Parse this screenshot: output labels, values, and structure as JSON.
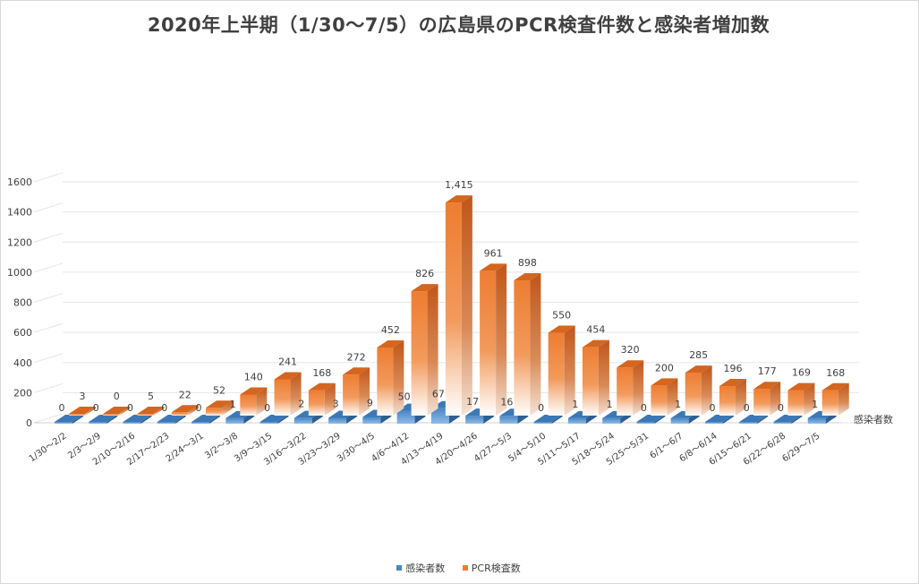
{
  "chart_data": {
    "type": "bar",
    "title": "2020年上半期（1/30〜7/5）の広島県のPCR検査件数と感染者増加数",
    "categories": [
      "1/30〜2/2",
      "2/3〜2/9",
      "2/10〜2/16",
      "2/17〜2/23",
      "2/24〜3/1",
      "3/2〜3/8",
      "3/9〜3/15",
      "3/16〜3/22",
      "3/23〜3/29",
      "3/30〜4/5",
      "4/6〜4/12",
      "4/13〜4/19",
      "4/20〜4/26",
      "4/27〜5/3",
      "5/4〜5/10",
      "5/11〜5/17",
      "5/18〜5/24",
      "5/25〜5/31",
      "6/1〜6/7",
      "6/8〜6/14",
      "6/15〜6/21",
      "6/22〜6/28",
      "6/29〜7/5"
    ],
    "series": [
      {
        "name": "感染者数",
        "values": [
          0,
          0,
          0,
          0,
          0,
          1,
          0,
          2,
          3,
          9,
          50,
          67,
          17,
          16,
          0,
          1,
          1,
          0,
          1,
          0,
          0,
          0,
          1
        ],
        "labels": [
          "0",
          "0",
          "0",
          "0",
          "0",
          "1",
          "0",
          "2",
          "3",
          "9",
          "50",
          "67",
          "17",
          "16",
          "0",
          "1",
          "1",
          "0",
          "1",
          "0",
          "0",
          "0",
          "1"
        ],
        "color": "#4a86c5"
      },
      {
        "name": "PCR検査数",
        "values": [
          3,
          0,
          5,
          22,
          52,
          140,
          241,
          168,
          272,
          452,
          826,
          1415,
          961,
          898,
          550,
          454,
          320,
          200,
          285,
          196,
          177,
          169,
          168
        ],
        "labels": [
          "3",
          "0",
          "5",
          "22",
          "52",
          "140",
          "241",
          "168",
          "272",
          "452",
          "826",
          "1,415",
          "961",
          "898",
          "550",
          "454",
          "320",
          "200",
          "285",
          "196",
          "177",
          "169",
          "168"
        ],
        "color": "#ed7d31"
      }
    ],
    "y_ticks": [
      "0",
      "200",
      "400",
      "600",
      "800",
      "1000",
      "1200",
      "1400",
      "1600"
    ],
    "ylim": [
      0,
      1600
    ],
    "depth_axis_label": "感染者数",
    "grid": true,
    "legend_position": "bottom"
  }
}
